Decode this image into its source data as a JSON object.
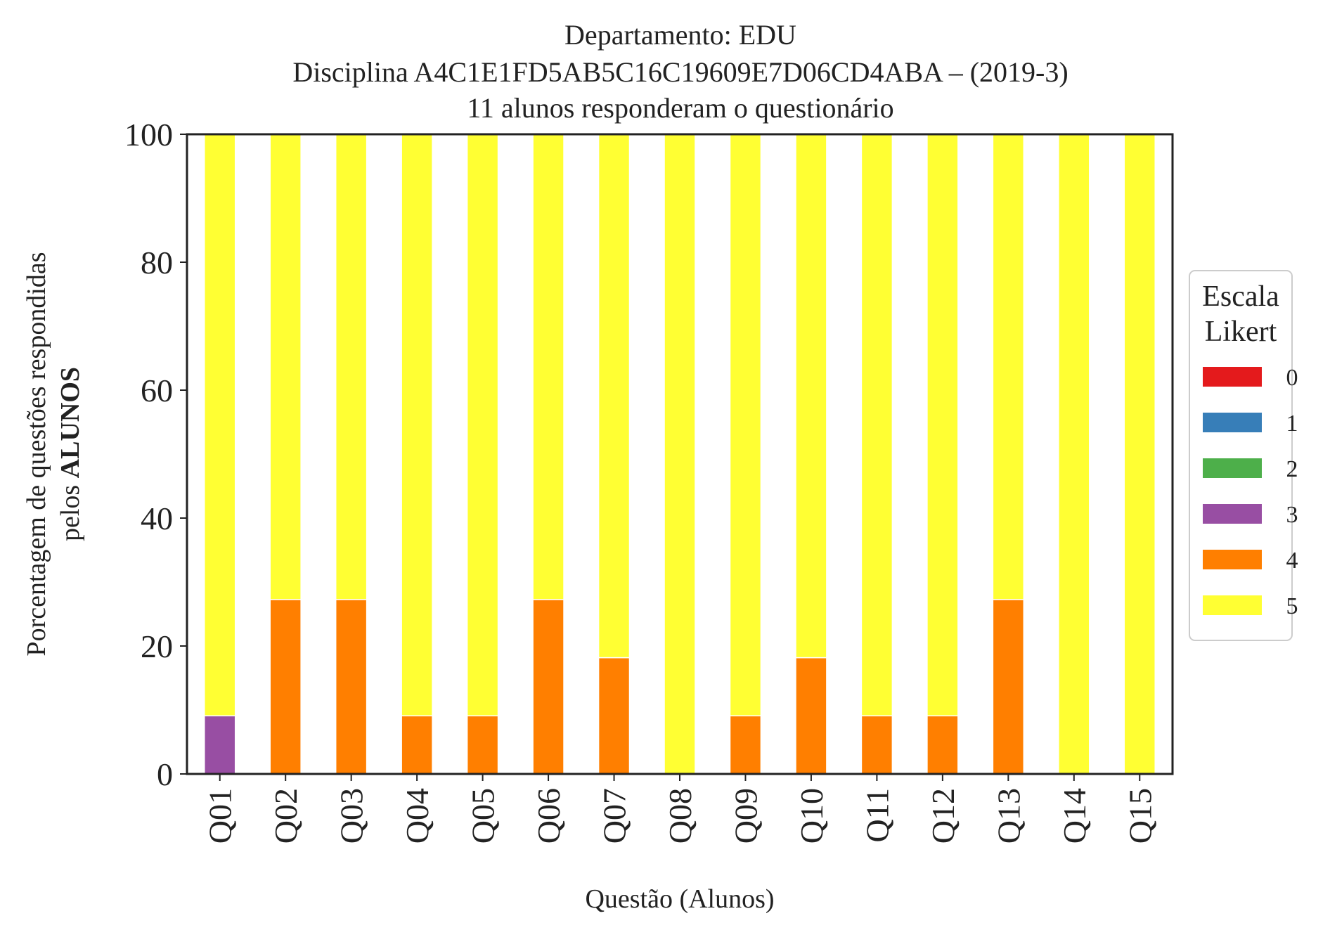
{
  "chart_data": {
    "type": "bar",
    "stacked": true,
    "title_lines": [
      "Departamento: EDU",
      "Disciplina A4C1E1FD5AB5C16C19609E7D06CD4ABA – (2019-3)",
      "11 alunos responderam o questionário"
    ],
    "xlabel": "Questão (Alunos)",
    "ylabel_line1": "Porcentagem de questões respondidas",
    "ylabel_line2_prefix": "pelos ",
    "ylabel_line2_bold": "ALUNOS",
    "ylim": [
      0,
      100
    ],
    "yticks": [
      0,
      20,
      40,
      60,
      80,
      100
    ],
    "grid": false,
    "categories": [
      "Q01",
      "Q02",
      "Q03",
      "Q04",
      "Q05",
      "Q06",
      "Q07",
      "Q08",
      "Q09",
      "Q10",
      "Q11",
      "Q12",
      "Q13",
      "Q14",
      "Q15"
    ],
    "series": [
      {
        "name": "0",
        "color": "#e41a1c",
        "values": [
          0,
          0,
          0,
          0,
          0,
          0,
          0,
          0,
          0,
          0,
          0,
          0,
          0,
          0,
          0
        ]
      },
      {
        "name": "1",
        "color": "#377eb8",
        "values": [
          0,
          0,
          0,
          0,
          0,
          0,
          0,
          0,
          0,
          0,
          0,
          0,
          0,
          0,
          0
        ]
      },
      {
        "name": "2",
        "color": "#4daf4a",
        "values": [
          0,
          0,
          0,
          0,
          0,
          0,
          0,
          0,
          0,
          0,
          0,
          0,
          0,
          0,
          0
        ]
      },
      {
        "name": "3",
        "color": "#984ea3",
        "values": [
          9.09,
          0,
          0,
          0,
          0,
          0,
          0,
          0,
          0,
          0,
          0,
          0,
          0,
          0,
          0
        ]
      },
      {
        "name": "4",
        "color": "#ff7f00",
        "values": [
          0,
          27.27,
          27.27,
          9.09,
          9.09,
          27.27,
          18.18,
          0,
          9.09,
          18.18,
          9.09,
          9.09,
          27.27,
          0,
          0
        ]
      },
      {
        "name": "5",
        "color": "#ffff33",
        "values": [
          90.91,
          72.73,
          72.73,
          90.91,
          90.91,
          72.73,
          81.82,
          100,
          90.91,
          81.82,
          90.91,
          90.91,
          72.73,
          100,
          100
        ]
      }
    ],
    "legend": {
      "title_lines": [
        "Escala",
        "Likert"
      ],
      "placement": "right-center, outside plot"
    }
  }
}
